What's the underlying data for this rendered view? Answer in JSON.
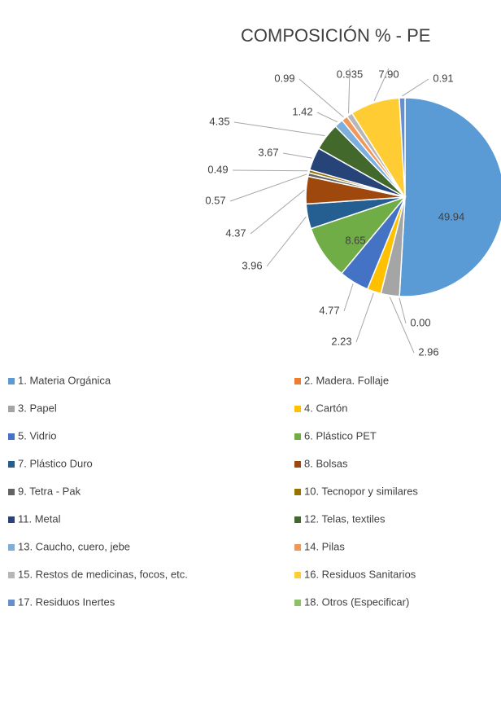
{
  "chart_data": {
    "type": "pie",
    "title": "COMPOSICIÓN % - PE",
    "categories": [
      "1. Materia Orgánica",
      "2. Madera. Follaje",
      "3. Papel",
      "4. Cartón",
      "5. Vidrio",
      "6. Plástico PET",
      "7. Plástico Duro",
      "8. Bolsas",
      "9. Tetra - Pak",
      "10. Tecnopor y similares",
      "11. Metal",
      "12. Telas, textiles",
      "13. Caucho, cuero, jebe",
      "14. Pilas",
      "15. Restos de medicinas, focos, etc.",
      "16. Residuos Sanitarios",
      "17. Residuos Inertes",
      "18. Otros (Especificar)"
    ],
    "values": [
      49.94,
      0,
      2.96,
      2.23,
      4.77,
      8.65,
      3.96,
      4.37,
      0.57,
      0.49,
      3.67,
      4.35,
      1.42,
      0.99,
      0.935,
      7.9,
      0.91,
      null
    ],
    "value_labels": [
      "49.94",
      "0.00",
      "2.96",
      "2.23",
      "4.77",
      "8.65",
      "3.96",
      "4.37",
      "0.57",
      "0.49",
      "3.67",
      "4.35",
      "1.42",
      "0.99",
      "0.935",
      "7.90",
      "0.91",
      null
    ],
    "colors": [
      "#5b9bd5",
      "#ed7d31",
      "#a5a5a5",
      "#ffc000",
      "#4472c4",
      "#70ad47",
      "#255e91",
      "#9e480e",
      "#636363",
      "#997300",
      "#264478",
      "#43682b",
      "#7cafdd",
      "#f1975a",
      "#b7b7b7",
      "#ffcd33",
      "#698ed0",
      "#8cc168"
    ],
    "legend": "bottom"
  }
}
